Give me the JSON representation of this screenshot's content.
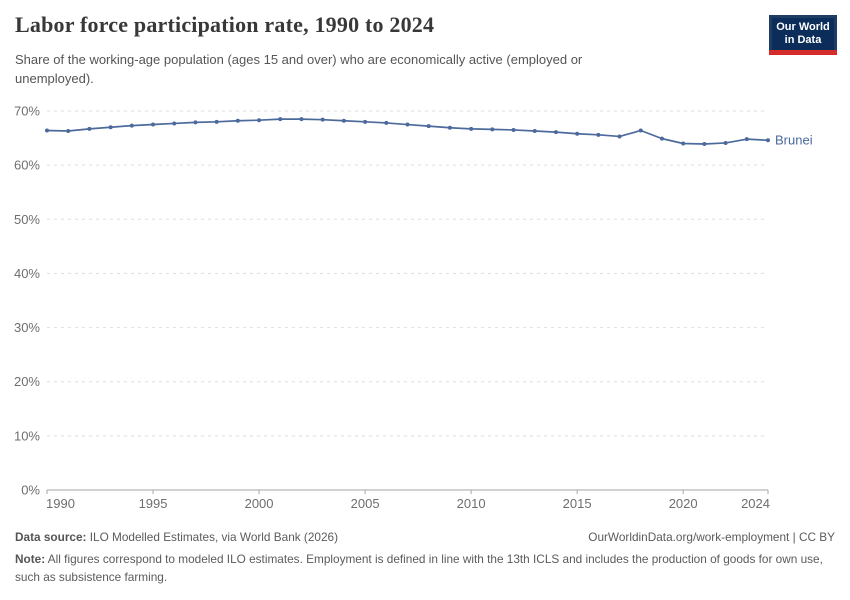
{
  "header": {
    "title": "Labor force participation rate, 1990 to 2024",
    "subtitle": "Share of the working-age population (ages 15 and over) who are economically active (employed or unemployed).",
    "logo": {
      "line1": "Our World",
      "line2": "in Data"
    }
  },
  "chart_data": {
    "type": "line",
    "title": "Labor force participation rate, 1990 to 2024",
    "unit": "%",
    "x": [
      1990,
      1991,
      1992,
      1993,
      1994,
      1995,
      1996,
      1997,
      1998,
      1999,
      2000,
      2001,
      2002,
      2003,
      2004,
      2005,
      2006,
      2007,
      2008,
      2009,
      2010,
      2011,
      2012,
      2013,
      2014,
      2015,
      2016,
      2017,
      2018,
      2019,
      2020,
      2021,
      2022,
      2023,
      2024
    ],
    "series": [
      {
        "name": "Brunei",
        "color": "#4C6A9C",
        "values": [
          66.4,
          66.3,
          66.7,
          67.0,
          67.3,
          67.5,
          67.7,
          67.9,
          68.0,
          68.2,
          68.3,
          68.5,
          68.5,
          68.4,
          68.2,
          68.0,
          67.8,
          67.5,
          67.2,
          66.9,
          66.7,
          66.6,
          66.5,
          66.3,
          66.1,
          65.8,
          65.6,
          65.3,
          66.4,
          64.9,
          64.0,
          63.9,
          64.1,
          64.8,
          64.6
        ]
      }
    ],
    "ylim": [
      0,
      70
    ],
    "yticks": [
      0,
      10,
      20,
      30,
      40,
      50,
      60,
      70
    ],
    "ytick_suffix": "%",
    "xticks": [
      1990,
      1995,
      2000,
      2005,
      2010,
      2015,
      2020,
      2024
    ],
    "grid": "horizontal-dashed",
    "legend_position": "end-of-line-label",
    "colors": {
      "line": "#4C6A9C",
      "grid": "#dddddd",
      "axis": "#a5a5a5",
      "tick_text": "#6e6e6e"
    }
  },
  "footer": {
    "datasource_label": "Data source:",
    "datasource_text": " ILO Modelled Estimates, via World Bank (2026)",
    "link_text": "OurWorldinData.org/work-employment | CC BY",
    "note_label": "Note:",
    "note_text": " All figures correspond to modeled ILO estimates. Employment is defined in line with the 13th ICLS and includes the production of goods for own use, such as subsistence farming."
  }
}
